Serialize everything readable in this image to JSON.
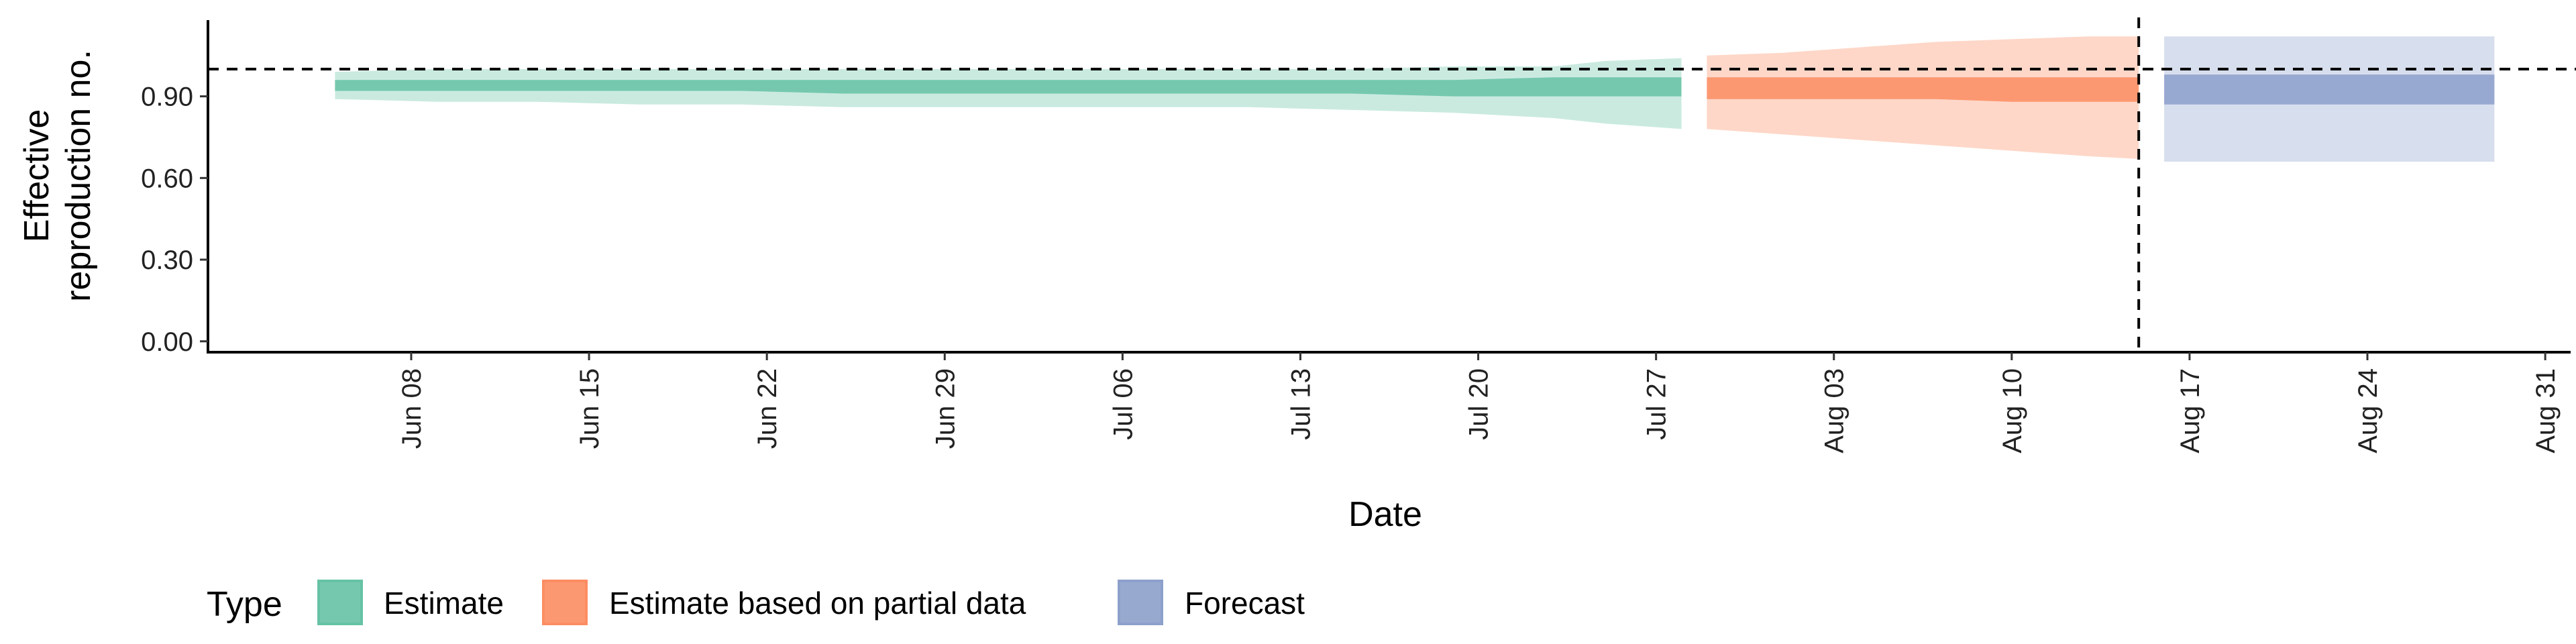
{
  "chart_data": {
    "type": "area",
    "xlabel": "Date",
    "ylabel": [
      "Effective",
      "reproduction no."
    ],
    "ylim": [
      -0.04,
      1.18
    ],
    "yticks": [
      0.0,
      0.3,
      0.6,
      0.9
    ],
    "ytick_labels": [
      "0.00",
      "0.30",
      "0.60",
      "0.90"
    ],
    "xlim": [
      "2020-05-31",
      "2020-09-01"
    ],
    "xtick_dates": [
      "2020-06-08",
      "2020-06-15",
      "2020-06-22",
      "2020-06-29",
      "2020-07-06",
      "2020-07-13",
      "2020-07-20",
      "2020-07-27",
      "2020-08-03",
      "2020-08-10",
      "2020-08-17",
      "2020-08-24",
      "2020-08-31"
    ],
    "xtick_labels": [
      "Jun 08",
      "Jun 15",
      "Jun 22",
      "Jun 29",
      "Jul 06",
      "Jul 13",
      "Jul 20",
      "Jul 27",
      "Aug 03",
      "Aug 10",
      "Aug 17",
      "Aug 24",
      "Aug 31"
    ],
    "hline": 1.0,
    "vline": "2020-08-15",
    "legend": {
      "title": "Type",
      "placement": "bottom-left"
    },
    "series": [
      {
        "name": "Estimate",
        "color": "#66c2a5",
        "x": [
          "2020-06-05",
          "2020-06-09",
          "2020-06-13",
          "2020-06-17",
          "2020-06-21",
          "2020-06-25",
          "2020-06-29",
          "2020-07-03",
          "2020-07-07",
          "2020-07-11",
          "2020-07-15",
          "2020-07-19",
          "2020-07-23",
          "2020-07-25",
          "2020-07-28"
        ],
        "outer_lower": [
          0.89,
          0.88,
          0.88,
          0.87,
          0.87,
          0.86,
          0.86,
          0.86,
          0.86,
          0.86,
          0.85,
          0.84,
          0.82,
          0.8,
          0.78
        ],
        "outer_upper": [
          0.99,
          1.0,
          1.0,
          1.0,
          1.0,
          1.0,
          1.0,
          1.0,
          1.0,
          1.0,
          1.0,
          1.01,
          1.01,
          1.03,
          1.04
        ],
        "inner_lower": [
          0.92,
          0.92,
          0.92,
          0.92,
          0.92,
          0.91,
          0.91,
          0.91,
          0.91,
          0.91,
          0.91,
          0.9,
          0.9,
          0.9,
          0.9
        ],
        "inner_upper": [
          0.96,
          0.96,
          0.96,
          0.96,
          0.96,
          0.96,
          0.96,
          0.96,
          0.96,
          0.96,
          0.96,
          0.96,
          0.97,
          0.97,
          0.97
        ]
      },
      {
        "name": "Estimate based on partial data",
        "color": "#fc8d62",
        "x": [
          "2020-07-29",
          "2020-08-01",
          "2020-08-04",
          "2020-08-07",
          "2020-08-10",
          "2020-08-13",
          "2020-08-15"
        ],
        "outer_lower": [
          0.78,
          0.76,
          0.74,
          0.72,
          0.7,
          0.68,
          0.67
        ],
        "outer_upper": [
          1.05,
          1.06,
          1.08,
          1.1,
          1.11,
          1.12,
          1.12
        ],
        "inner_lower": [
          0.89,
          0.89,
          0.89,
          0.89,
          0.88,
          0.88,
          0.88
        ],
        "inner_upper": [
          0.97,
          0.97,
          0.97,
          0.97,
          0.97,
          0.97,
          0.97
        ]
      },
      {
        "name": "Forecast",
        "color": "#8da0cb",
        "x": [
          "2020-08-16",
          "2020-08-29"
        ],
        "outer_lower": [
          0.66,
          0.66
        ],
        "outer_upper": [
          1.12,
          1.12
        ],
        "inner_lower": [
          0.87,
          0.87
        ],
        "inner_upper": [
          0.98,
          0.98
        ]
      }
    ]
  }
}
